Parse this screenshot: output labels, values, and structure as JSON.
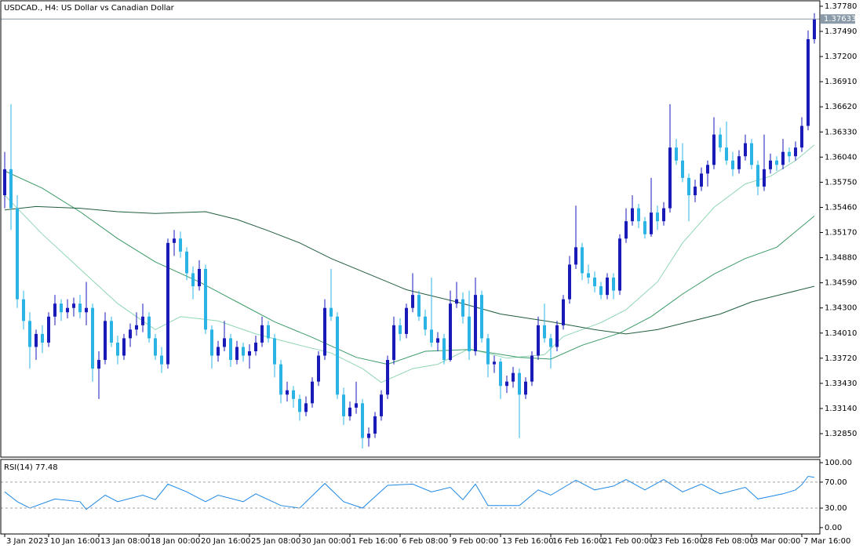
{
  "chart_data": [
    {
      "type": "candlestick",
      "title": "USDCAD., H4:  US Dollar vs Canadian Dollar",
      "up_color": "#1a1ab8",
      "down_color": "#2ab4e6",
      "ylim": [
        1.32579,
        1.37843
      ],
      "yticks": [
        {
          "value": 1.3778,
          "label": "1.37780"
        },
        {
          "value": 1.3749,
          "label": "1.37490"
        },
        {
          "value": 1.372,
          "label": "1.37200"
        },
        {
          "value": 1.3691,
          "label": "1.36910"
        },
        {
          "value": 1.3662,
          "label": "1.36620"
        },
        {
          "value": 1.3633,
          "label": "1.36330"
        },
        {
          "value": 1.3604,
          "label": "1.36040"
        },
        {
          "value": 1.3575,
          "label": "1.35750"
        },
        {
          "value": 1.3546,
          "label": "1.35460"
        },
        {
          "value": 1.3517,
          "label": "1.35170"
        },
        {
          "value": 1.3488,
          "label": "1.34880"
        },
        {
          "value": 1.3459,
          "label": "1.34590"
        },
        {
          "value": 1.343,
          "label": "1.34300"
        },
        {
          "value": 1.3401,
          "label": "1.34010"
        },
        {
          "value": 1.3372,
          "label": "1.33720"
        },
        {
          "value": 1.3343,
          "label": "1.33430"
        },
        {
          "value": 1.3314,
          "label": "1.33140"
        },
        {
          "value": 1.3285,
          "label": "1.32850"
        }
      ],
      "current_price": 1.37633,
      "price_line_color": "#8a9aa8",
      "xticks": [
        {
          "value": 0,
          "label": "3 Jan 2023"
        },
        {
          "value": 7,
          "label": "10 Jan 16:00"
        },
        {
          "value": 15,
          "label": "13 Jan 08:00"
        },
        {
          "value": 23,
          "label": "18 Jan 00:00"
        },
        {
          "value": 31,
          "label": "20 Jan 16:00"
        },
        {
          "value": 39,
          "label": "25 Jan 08:00"
        },
        {
          "value": 47,
          "label": "30 Jan 00:00"
        },
        {
          "value": 55,
          "label": "1 Feb 16:00"
        },
        {
          "value": 63,
          "label": "6 Feb 08:00"
        },
        {
          "value": 71,
          "label": "9 Feb 00:00"
        },
        {
          "value": 79,
          "label": "13 Feb 16:00"
        },
        {
          "value": 87,
          "label": "16 Feb 16:00"
        },
        {
          "value": 95,
          "label": "21 Feb 00:00"
        },
        {
          "value": 103,
          "label": "23 Feb 16:00"
        },
        {
          "value": 111,
          "label": "28 Feb 08:00"
        },
        {
          "value": 119,
          "label": "3 Mar 00:00"
        },
        {
          "value": 127,
          "label": "7 Mar 16:00"
        }
      ],
      "ohlc": [
        [
          1.356,
          1.361,
          1.3545,
          1.359
        ],
        [
          1.359,
          1.3665,
          1.352,
          1.3545
        ],
        [
          1.3545,
          1.356,
          1.343,
          1.344
        ],
        [
          1.344,
          1.345,
          1.3405,
          1.3415
        ],
        [
          1.3415,
          1.3425,
          1.336,
          1.3385
        ],
        [
          1.3385,
          1.3405,
          1.337,
          1.34
        ],
        [
          1.34,
          1.341,
          1.3378,
          1.339
        ],
        [
          1.339,
          1.3425,
          1.3385,
          1.342
        ],
        [
          1.342,
          1.3445,
          1.341,
          1.3435
        ],
        [
          1.3435,
          1.344,
          1.3415,
          1.3425
        ],
        [
          1.3425,
          1.344,
          1.3418,
          1.343
        ],
        [
          1.343,
          1.3442,
          1.342,
          1.3435
        ],
        [
          1.3435,
          1.3445,
          1.3418,
          1.3425
        ],
        [
          1.3425,
          1.346,
          1.341,
          1.343
        ],
        [
          1.343,
          1.3435,
          1.3345,
          1.336
        ],
        [
          1.336,
          1.338,
          1.3325,
          1.337
        ],
        [
          1.337,
          1.3425,
          1.3365,
          1.3415
        ],
        [
          1.3415,
          1.342,
          1.3385,
          1.339
        ],
        [
          1.339,
          1.3398,
          1.3365,
          1.3375
        ],
        [
          1.3375,
          1.34,
          1.337,
          1.3395
        ],
        [
          1.3395,
          1.3412,
          1.3385,
          1.3405
        ],
        [
          1.3405,
          1.3425,
          1.3398,
          1.341
        ],
        [
          1.341,
          1.3435,
          1.3402,
          1.342
        ],
        [
          1.342,
          1.3425,
          1.339,
          1.3395
        ],
        [
          1.3395,
          1.34,
          1.337,
          1.3375
        ],
        [
          1.3375,
          1.3385,
          1.3355,
          1.3365
        ],
        [
          1.3365,
          1.351,
          1.336,
          1.3505
        ],
        [
          1.3505,
          1.352,
          1.349,
          1.351
        ],
        [
          1.351,
          1.3518,
          1.3488,
          1.3495
        ],
        [
          1.3495,
          1.35,
          1.3462,
          1.347
        ],
        [
          1.347,
          1.3478,
          1.344,
          1.3455
        ],
        [
          1.3455,
          1.3485,
          1.345,
          1.3475
        ],
        [
          1.3475,
          1.348,
          1.34,
          1.3405
        ],
        [
          1.3405,
          1.341,
          1.336,
          1.3375
        ],
        [
          1.3375,
          1.3392,
          1.3368,
          1.3385
        ],
        [
          1.3385,
          1.3415,
          1.338,
          1.3395
        ],
        [
          1.3395,
          1.34,
          1.3362,
          1.337
        ],
        [
          1.337,
          1.3392,
          1.3365,
          1.3385
        ],
        [
          1.3385,
          1.339,
          1.3368,
          1.3375
        ],
        [
          1.3375,
          1.3388,
          1.336,
          1.338
        ],
        [
          1.338,
          1.3398,
          1.3375,
          1.339
        ],
        [
          1.339,
          1.342,
          1.3385,
          1.341
        ],
        [
          1.341,
          1.3415,
          1.339,
          1.3395
        ],
        [
          1.3395,
          1.34,
          1.335,
          1.3365
        ],
        [
          1.3365,
          1.337,
          1.332,
          1.333
        ],
        [
          1.333,
          1.3345,
          1.3322,
          1.3335
        ],
        [
          1.3335,
          1.334,
          1.3315,
          1.3325
        ],
        [
          1.3325,
          1.333,
          1.33,
          1.331
        ],
        [
          1.331,
          1.3328,
          1.3305,
          1.332
        ],
        [
          1.332,
          1.335,
          1.3315,
          1.3345
        ],
        [
          1.3345,
          1.338,
          1.334,
          1.3375
        ],
        [
          1.3375,
          1.344,
          1.337,
          1.343
        ],
        [
          1.343,
          1.3475,
          1.3415,
          1.342
        ],
        [
          1.342,
          1.3425,
          1.3325,
          1.333
        ],
        [
          1.333,
          1.3338,
          1.3295,
          1.3305
        ],
        [
          1.3305,
          1.3322,
          1.33,
          1.3315
        ],
        [
          1.3315,
          1.3345,
          1.3308,
          1.332
        ],
        [
          1.332,
          1.3325,
          1.3268,
          1.328
        ],
        [
          1.328,
          1.3292,
          1.327,
          1.3285
        ],
        [
          1.3285,
          1.331,
          1.328,
          1.3305
        ],
        [
          1.3305,
          1.3335,
          1.33,
          1.333
        ],
        [
          1.333,
          1.3375,
          1.3325,
          1.337
        ],
        [
          1.337,
          1.342,
          1.3365,
          1.341
        ],
        [
          1.341,
          1.3418,
          1.3392,
          1.34
        ],
        [
          1.34,
          1.3435,
          1.3395,
          1.343
        ],
        [
          1.343,
          1.347,
          1.3425,
          1.3445
        ],
        [
          1.3445,
          1.345,
          1.3415,
          1.342
        ],
        [
          1.342,
          1.3428,
          1.3398,
          1.3405
        ],
        [
          1.3405,
          1.3465,
          1.3385,
          1.339
        ],
        [
          1.339,
          1.3402,
          1.338,
          1.3395
        ],
        [
          1.3395,
          1.34,
          1.3365,
          1.337
        ],
        [
          1.337,
          1.345,
          1.3368,
          1.3435
        ],
        [
          1.3435,
          1.346,
          1.343,
          1.344
        ],
        [
          1.344,
          1.3448,
          1.3412,
          1.342
        ],
        [
          1.342,
          1.345,
          1.337,
          1.338
        ],
        [
          1.338,
          1.3465,
          1.3375,
          1.3445
        ],
        [
          1.3445,
          1.345,
          1.339,
          1.3395
        ],
        [
          1.3395,
          1.34,
          1.335,
          1.3365
        ],
        [
          1.3365,
          1.3375,
          1.3355,
          1.3368
        ],
        [
          1.3368,
          1.3372,
          1.3325,
          1.334
        ],
        [
          1.334,
          1.3352,
          1.3332,
          1.3345
        ],
        [
          1.3345,
          1.3362,
          1.3338,
          1.3355
        ],
        [
          1.3355,
          1.336,
          1.328,
          1.333
        ],
        [
          1.333,
          1.335,
          1.3325,
          1.3345
        ],
        [
          1.3345,
          1.338,
          1.334,
          1.3375
        ],
        [
          1.3375,
          1.342,
          1.337,
          1.341
        ],
        [
          1.341,
          1.3435,
          1.339,
          1.3395
        ],
        [
          1.3395,
          1.34,
          1.336,
          1.3385
        ],
        [
          1.3385,
          1.3415,
          1.338,
          1.341
        ],
        [
          1.341,
          1.3445,
          1.3405,
          1.344
        ],
        [
          1.344,
          1.349,
          1.3435,
          1.348
        ],
        [
          1.348,
          1.3548,
          1.3475,
          1.35
        ],
        [
          1.35,
          1.3505,
          1.3462,
          1.347
        ],
        [
          1.347,
          1.348,
          1.3458,
          1.3465
        ],
        [
          1.3465,
          1.3472,
          1.3448,
          1.3455
        ],
        [
          1.3455,
          1.346,
          1.344,
          1.3445
        ],
        [
          1.3445,
          1.347,
          1.344,
          1.3465
        ],
        [
          1.3465,
          1.347,
          1.344,
          1.345
        ],
        [
          1.345,
          1.3515,
          1.3445,
          1.351
        ],
        [
          1.351,
          1.3545,
          1.3505,
          1.353
        ],
        [
          1.353,
          1.356,
          1.3525,
          1.3545
        ],
        [
          1.3545,
          1.355,
          1.3522,
          1.353
        ],
        [
          1.353,
          1.3535,
          1.351,
          1.3515
        ],
        [
          1.3515,
          1.358,
          1.3512,
          1.354
        ],
        [
          1.354,
          1.3548,
          1.352,
          1.353
        ],
        [
          1.353,
          1.3552,
          1.3525,
          1.3545
        ],
        [
          1.3545,
          1.3665,
          1.354,
          1.3615
        ],
        [
          1.3615,
          1.3625,
          1.3595,
          1.36
        ],
        [
          1.36,
          1.362,
          1.3575,
          1.358
        ],
        [
          1.358,
          1.3585,
          1.353,
          1.356
        ],
        [
          1.356,
          1.3578,
          1.3552,
          1.357
        ],
        [
          1.357,
          1.3592,
          1.3565,
          1.3585
        ],
        [
          1.3585,
          1.36,
          1.357,
          1.3595
        ],
        [
          1.3595,
          1.365,
          1.359,
          1.363
        ],
        [
          1.363,
          1.3638,
          1.361,
          1.3615
        ],
        [
          1.3615,
          1.3645,
          1.3595,
          1.36
        ],
        [
          1.36,
          1.361,
          1.3582,
          1.359
        ],
        [
          1.359,
          1.3612,
          1.3585,
          1.3605
        ],
        [
          1.3605,
          1.363,
          1.36,
          1.362
        ],
        [
          1.362,
          1.3625,
          1.359,
          1.3595
        ],
        [
          1.3595,
          1.36,
          1.356,
          1.357
        ],
        [
          1.357,
          1.363,
          1.3565,
          1.359
        ],
        [
          1.359,
          1.3608,
          1.3585,
          1.36
        ],
        [
          1.36,
          1.3605,
          1.3588,
          1.3595
        ],
        [
          1.3595,
          1.3625,
          1.359,
          1.361
        ],
        [
          1.361,
          1.3615,
          1.3598,
          1.3605
        ],
        [
          1.3605,
          1.3622,
          1.36,
          1.3615
        ],
        [
          1.3615,
          1.365,
          1.361,
          1.364
        ],
        [
          1.364,
          1.375,
          1.3635,
          1.374
        ],
        [
          1.374,
          1.377,
          1.3735,
          1.37633
        ]
      ],
      "series": [
        {
          "color": "#8fd6b4",
          "x": [
            0,
            6,
            12,
            18,
            24,
            28,
            34,
            40,
            47,
            52,
            57,
            60,
            65,
            69,
            74,
            80,
            86,
            89,
            95,
            99,
            104,
            108,
            113,
            118,
            122,
            126,
            129
          ],
          "values": [
            1.356,
            1.3515,
            1.3475,
            1.3435,
            1.3405,
            1.342,
            1.3415,
            1.34,
            1.3387,
            1.3378,
            1.336,
            1.3344,
            1.336,
            1.3365,
            1.3383,
            1.3372,
            1.3376,
            1.3397,
            1.3413,
            1.3428,
            1.346,
            1.3505,
            1.3546,
            1.3573,
            1.3582,
            1.36,
            1.3618
          ]
        },
        {
          "color": "#3a9a66",
          "x": [
            0,
            6,
            12,
            18,
            24,
            31,
            37,
            43,
            49,
            56,
            61,
            67,
            74,
            82,
            87,
            92,
            98,
            103,
            108,
            113,
            118,
            123,
            129
          ],
          "values": [
            1.3588,
            1.3568,
            1.3541,
            1.351,
            1.3483,
            1.346,
            1.3437,
            1.3414,
            1.3396,
            1.3373,
            1.3365,
            1.338,
            1.3382,
            1.3373,
            1.3371,
            1.3387,
            1.3401,
            1.342,
            1.3446,
            1.3469,
            1.3487,
            1.35,
            1.3536
          ]
        },
        {
          "color": "#1f5e3e",
          "x": [
            0,
            5,
            12,
            18,
            24,
            32,
            37,
            42,
            47,
            52,
            58,
            64,
            72,
            79,
            87,
            94,
            99,
            104,
            109,
            114,
            119,
            124,
            129
          ],
          "values": [
            1.3543,
            1.3547,
            1.3545,
            1.3541,
            1.3539,
            1.3541,
            1.3532,
            1.3519,
            1.3505,
            1.3487,
            1.3469,
            1.3451,
            1.3437,
            1.3423,
            1.3414,
            1.3405,
            1.34,
            1.3405,
            1.3414,
            1.3423,
            1.3437,
            1.3446,
            1.3455
          ]
        }
      ]
    },
    {
      "type": "line",
      "title": "RSI(14) 77.48",
      "color": "#1e88e5",
      "ylim": [
        -9.8,
        104.9
      ],
      "yticks": [
        {
          "value": 100,
          "label": "100.00"
        },
        {
          "value": 70,
          "label": "70.00"
        },
        {
          "value": 30,
          "label": "30.00"
        },
        {
          "value": 0,
          "label": "0.00"
        }
      ],
      "levels": [
        70,
        30
      ],
      "x": [
        0,
        2,
        4,
        8,
        12,
        13,
        16,
        18,
        22,
        24,
        26,
        29,
        32,
        34,
        38,
        40,
        44,
        47,
        51,
        54,
        57,
        61,
        65,
        68,
        71,
        73,
        75,
        77,
        82,
        85,
        87,
        91,
        94,
        97,
        99,
        102,
        105,
        108,
        111,
        114,
        118,
        120,
        124,
        126,
        127,
        128,
        129
      ],
      "values": [
        55,
        40,
        30,
        44,
        40,
        28,
        50,
        40,
        50,
        43,
        67,
        55,
        40,
        50,
        40,
        52,
        34,
        30,
        68,
        40,
        30,
        65,
        67,
        55,
        62,
        43,
        67,
        34,
        34,
        58,
        50,
        73,
        58,
        64,
        74,
        58,
        74,
        55,
        67,
        52,
        62,
        44,
        52,
        58,
        66,
        79,
        77.48
      ]
    }
  ]
}
